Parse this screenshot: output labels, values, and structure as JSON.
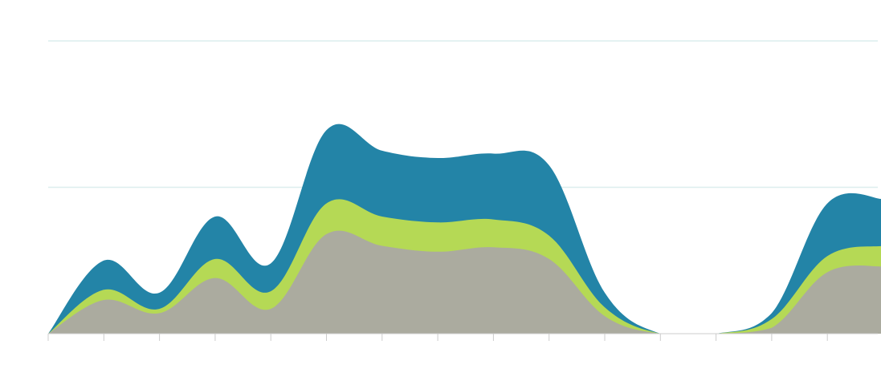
{
  "chart_data": {
    "type": "area",
    "stacked": true,
    "title": "",
    "xlabel": "",
    "ylabel": "",
    "x": [
      0,
      1,
      2,
      3,
      4,
      5,
      6,
      7,
      8,
      9,
      10,
      11,
      12,
      13,
      14,
      15
    ],
    "ylim": [
      0,
      200
    ],
    "y_gridlines": [
      100,
      200
    ],
    "grid": true,
    "legend": "none",
    "series": [
      {
        "color": "#abab9f",
        "values": [
          0,
          23,
          14,
          38,
          17,
          68,
          60,
          56,
          59,
          51,
          12,
          0,
          0,
          4,
          42,
          46
        ]
      },
      {
        "color": "#b5d955",
        "values": [
          0,
          7,
          3,
          13,
          12,
          21,
          20,
          20,
          19,
          16,
          6,
          0,
          0,
          6,
          11,
          14
        ]
      },
      {
        "color": "#2384a7",
        "values": [
          0,
          20,
          11,
          29,
          19,
          50,
          45,
          44,
          45,
          48,
          10,
          0,
          0,
          4,
          36,
          32
        ]
      }
    ],
    "colors": {
      "gridline": "#dceeee",
      "axis_tick": "#cccccc"
    }
  }
}
